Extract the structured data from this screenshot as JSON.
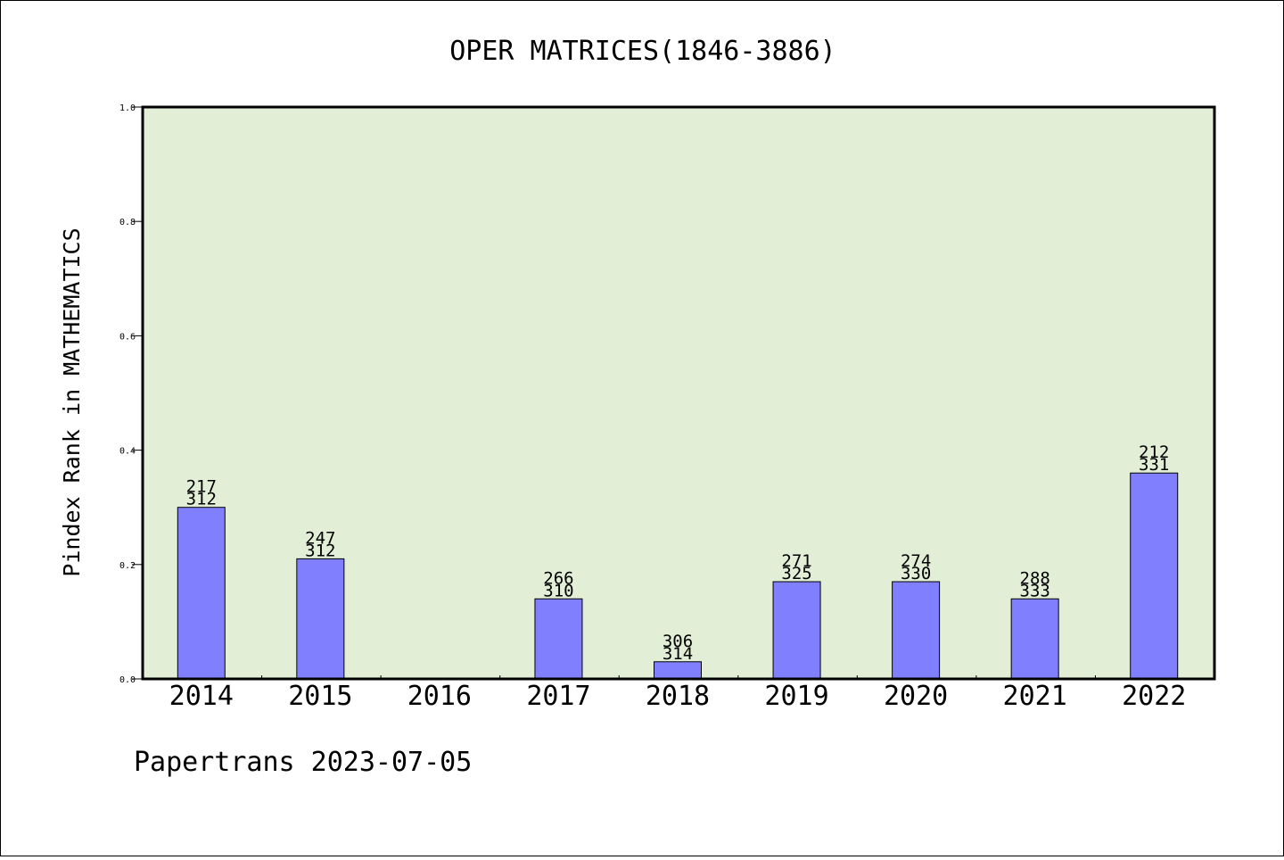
{
  "chart_data": {
    "type": "bar",
    "title": "OPER MATRICES(1846-3886)",
    "xlabel": "",
    "ylabel": "Pindex Rank in MATHEMATICS",
    "categories": [
      "2014",
      "2015",
      "2016",
      "2017",
      "2018",
      "2019",
      "2020",
      "2021",
      "2022"
    ],
    "values": [
      0.3,
      0.21,
      null,
      0.14,
      0.03,
      0.17,
      0.17,
      0.14,
      0.36
    ],
    "labels_top": [
      "217",
      "247",
      "",
      "266",
      "306",
      "271",
      "274",
      "288",
      "212"
    ],
    "labels_bottom": [
      "312",
      "312",
      "",
      "310",
      "314",
      "325",
      "330",
      "333",
      "331"
    ],
    "ylim": [
      0,
      1.0
    ],
    "yticks": [
      "0.0",
      "0.2",
      "0.4",
      "0.6",
      "0.8",
      "1.0"
    ],
    "grid": false,
    "colors": {
      "bar": "#8080ff",
      "plot_bg": "#e2efd6",
      "axis": "#000000"
    }
  },
  "footer": "Papertrans 2023-07-05"
}
